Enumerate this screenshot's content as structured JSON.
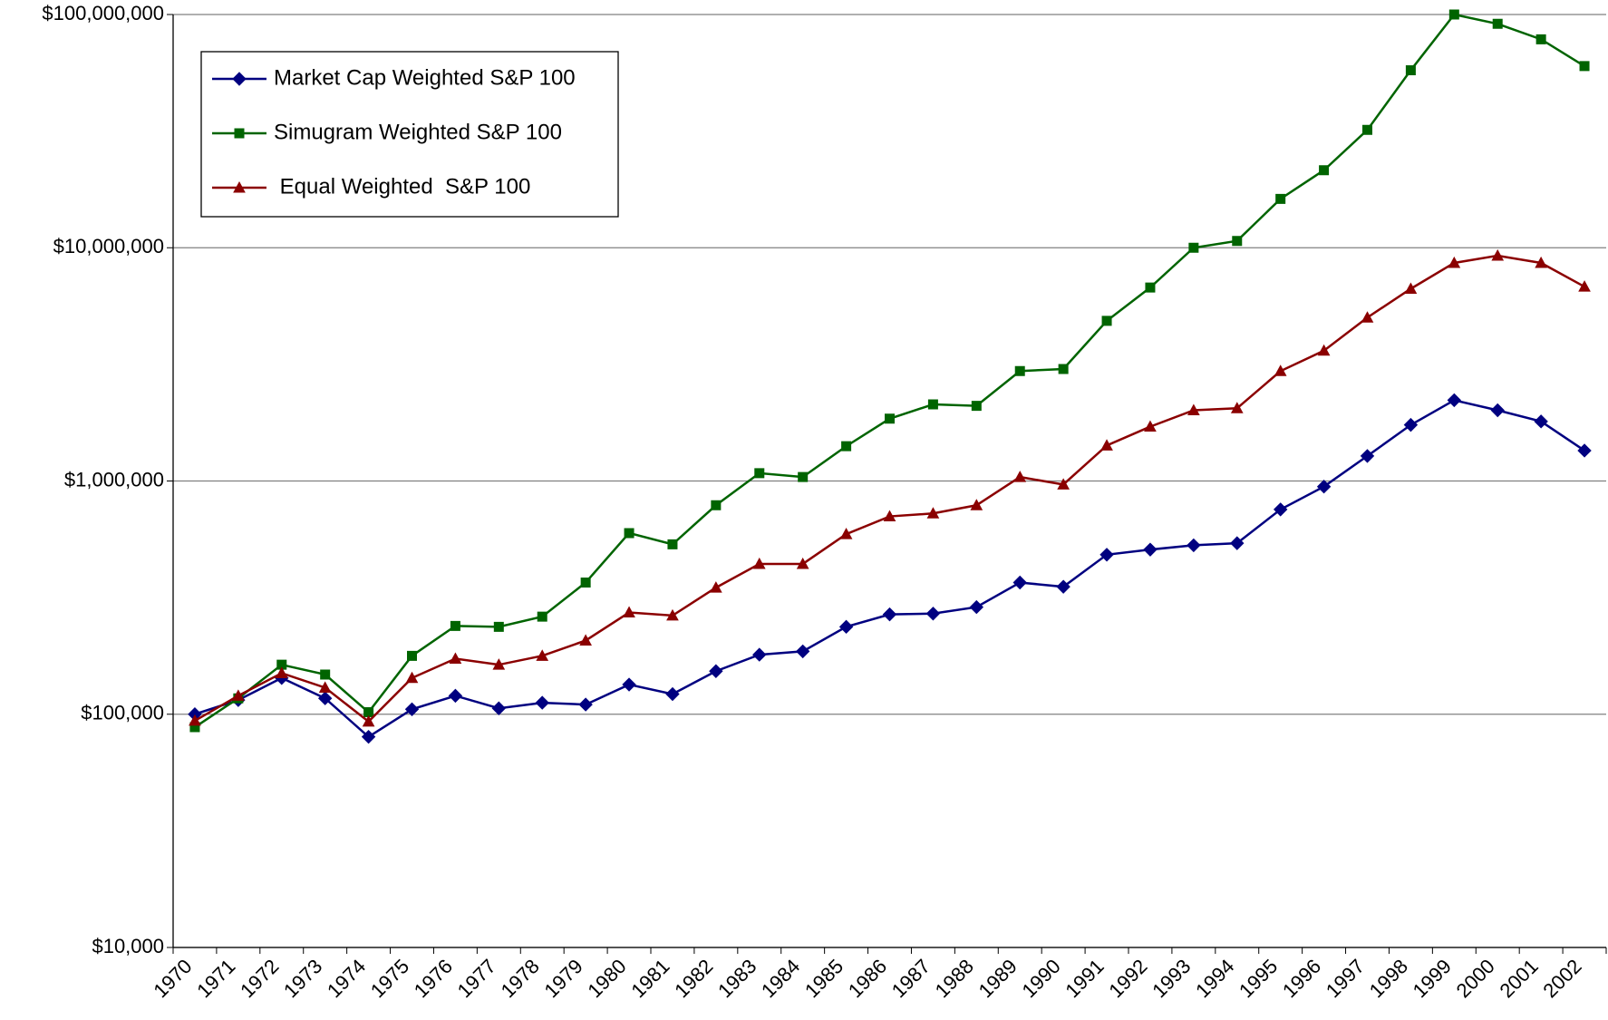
{
  "chart_data": {
    "type": "line",
    "log_scale": true,
    "grid": true,
    "legend": "top-left",
    "categories": [
      "1970",
      "1971",
      "1972",
      "1973",
      "1974",
      "1975",
      "1976",
      "1977",
      "1978",
      "1979",
      "1980",
      "1981",
      "1982",
      "1983",
      "1984",
      "1985",
      "1986",
      "1987",
      "1988",
      "1989",
      "1990",
      "1991",
      "1992",
      "1993",
      "1994",
      "1995",
      "1996",
      "1997",
      "1998",
      "1999",
      "2000",
      "2001",
      "2002"
    ],
    "ylim": [
      10000,
      100000000
    ],
    "yticks": [
      {
        "value": 10000,
        "label": "$10,000"
      },
      {
        "value": 100000,
        "label": "$100,000"
      },
      {
        "value": 1000000,
        "label": "$1,000,000"
      },
      {
        "value": 10000000,
        "label": "$10,000,000"
      },
      {
        "value": 100000000,
        "label": "$100,000,000"
      }
    ],
    "series": [
      {
        "name": "Market Cap Weighted S&P 100",
        "color": "#000080",
        "marker": "diamond",
        "values": [
          100000,
          115000,
          143000,
          117000,
          80000,
          105000,
          120000,
          106000,
          112000,
          110000,
          134000,
          122000,
          153000,
          180000,
          186000,
          237000,
          268000,
          270000,
          288000,
          367000,
          352000,
          483000,
          508000,
          530000,
          541000,
          755000,
          946000,
          1280000,
          1740000,
          2220000,
          2010000,
          1800000,
          1350000
        ]
      },
      {
        "name": "Simugram Weighted S&P 100",
        "color": "#006400",
        "marker": "square",
        "values": [
          88000,
          117000,
          163000,
          148000,
          102000,
          178000,
          239000,
          237000,
          262000,
          367000,
          598000,
          535000,
          787000,
          1080000,
          1040000,
          1410000,
          1850000,
          2130000,
          2100000,
          2960000,
          3020000,
          4860000,
          6750000,
          10000000,
          10700000,
          16200000,
          21500000,
          32000000,
          57700000,
          100000000,
          91200000,
          78300000,
          60100000
        ]
      },
      {
        "name": " Equal Weighted  S&P 100",
        "color": "#8b0000",
        "marker": "triangle",
        "values": [
          93800,
          120000,
          150000,
          130000,
          93000,
          143000,
          173000,
          163000,
          178000,
          207000,
          273000,
          265000,
          349000,
          441000,
          441000,
          592000,
          705000,
          726000,
          787000,
          1040000,
          966000,
          1420000,
          1710000,
          2010000,
          2050000,
          2960000,
          3620000,
          5020000,
          6670000,
          8610000,
          9250000,
          8610000,
          6810000
        ]
      }
    ]
  }
}
